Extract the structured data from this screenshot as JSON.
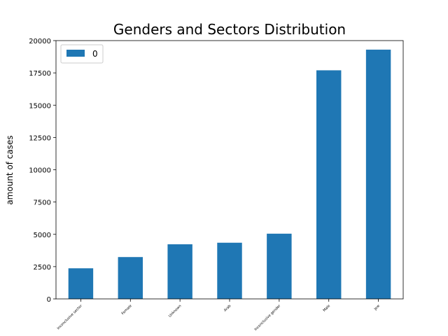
{
  "chart_data": {
    "type": "bar",
    "title": "Genders and Sectors Distribution",
    "xlabel": "",
    "ylabel": "amount of cases",
    "categories": [
      "Inconclusive sector",
      "Female",
      "Unknown",
      "Arab",
      "Inconclusive gender",
      "Male",
      "Jew"
    ],
    "series": [
      {
        "name": "0",
        "values": [
          2370,
          3240,
          4230,
          4350,
          5050,
          17700,
          19300
        ]
      }
    ],
    "yticks": [
      0,
      2500,
      5000,
      7500,
      10000,
      12500,
      15000,
      17500,
      20000
    ],
    "ylim": [
      0,
      20000
    ],
    "grid": false,
    "legend_position": "top-left",
    "colors": {
      "bar": "#1f77b4"
    }
  }
}
